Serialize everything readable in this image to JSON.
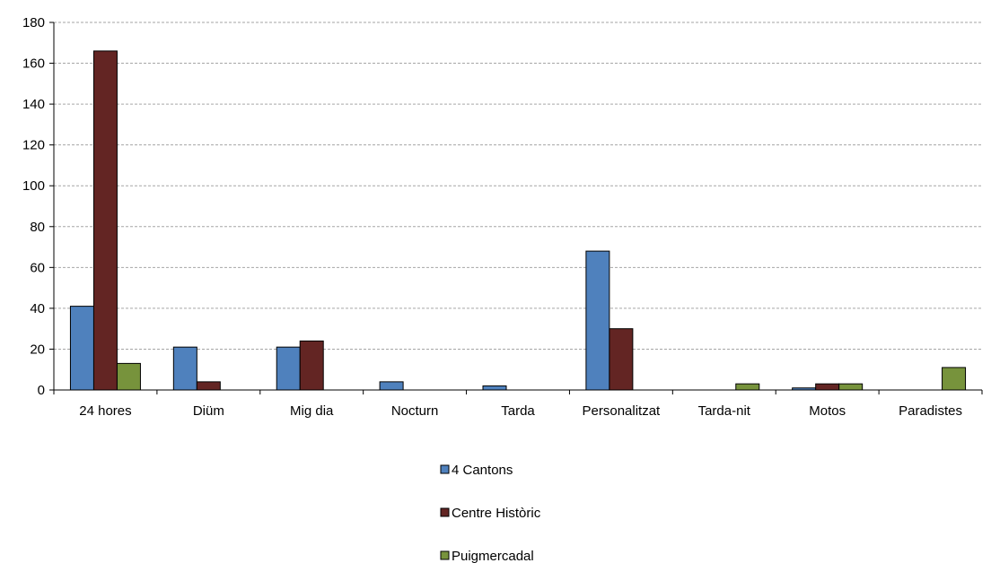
{
  "chart_data": {
    "type": "bar",
    "categories": [
      "24 hores",
      "Diüm",
      "Mig dia",
      "Nocturn",
      "Tarda",
      "Personalitzat",
      "Tarda-nit",
      "Motos",
      "Paradistes"
    ],
    "series": [
      {
        "name": "4 Cantons",
        "color": "#4f81bd",
        "values": [
          41,
          21,
          21,
          4,
          2,
          68,
          0,
          1,
          0
        ]
      },
      {
        "name": "Centre Històric",
        "color": "#632523",
        "values": [
          166,
          4,
          24,
          0,
          0,
          30,
          0,
          3,
          0
        ]
      },
      {
        "name": "Puigmercadal",
        "color": "#77933c",
        "values": [
          13,
          0,
          0,
          0,
          0,
          0,
          3,
          3,
          11
        ]
      }
    ],
    "yticks": [
      "0",
      "20",
      "40",
      "60",
      "80",
      "100",
      "120",
      "140",
      "160",
      "180"
    ],
    "ylim": [
      0,
      180
    ],
    "grid": true,
    "legend_position": "bottom"
  }
}
